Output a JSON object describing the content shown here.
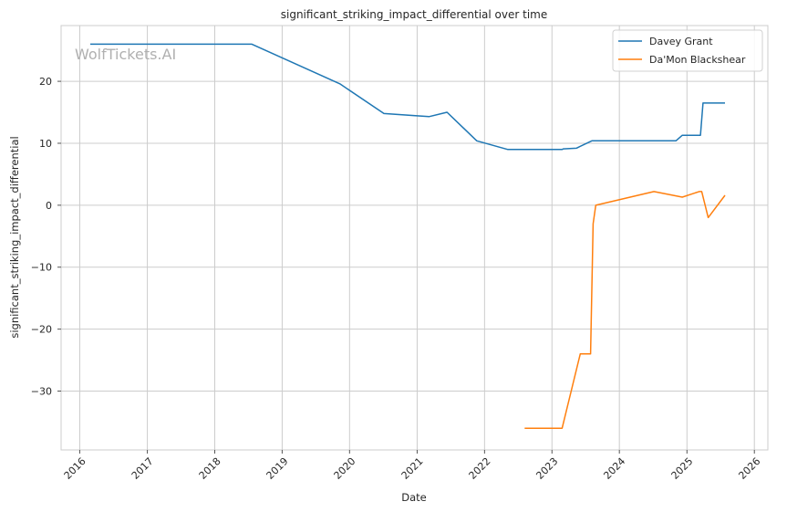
{
  "watermark": "WolfTickets.AI",
  "chart_data": {
    "type": "line",
    "title": "significant_striking_impact_differential over time",
    "xlabel": "Date",
    "ylabel": "significant_striking_impact_differential",
    "xlim": [
      "2015-09-22",
      "2026-03-15"
    ],
    "ylim": [
      -39.5,
      29.0
    ],
    "x_ticks": [
      "2016-01-01",
      "2017-01-01",
      "2018-01-01",
      "2019-01-01",
      "2020-01-01",
      "2021-01-01",
      "2022-01-01",
      "2023-01-01",
      "2024-01-01",
      "2025-01-01",
      "2026-01-01"
    ],
    "x_tick_labels": [
      "2016",
      "2017",
      "2018",
      "2019",
      "2020",
      "2021",
      "2022",
      "2023",
      "2024",
      "2025",
      "2026"
    ],
    "y_ticks": [
      -30,
      -20,
      -10,
      0,
      10,
      20
    ],
    "y_tick_labels": [
      "−30",
      "−20",
      "−10",
      "0",
      "10",
      "20"
    ],
    "grid": true,
    "legend_position": "top-right",
    "series": [
      {
        "name": "Davey Grant",
        "color": "#1f77b4",
        "points": [
          [
            "2016-02-27",
            26.0
          ],
          [
            "2018-07-21",
            26.0
          ],
          [
            "2019-11-09",
            19.6
          ],
          [
            "2020-07-05",
            14.8
          ],
          [
            "2021-03-06",
            14.3
          ],
          [
            "2021-06-12",
            15.0
          ],
          [
            "2021-11-20",
            10.4
          ],
          [
            "2022-05-07",
            9.0
          ],
          [
            "2023-02-25",
            9.0
          ],
          [
            "2023-03-04",
            9.1
          ],
          [
            "2023-05-13",
            9.2
          ],
          [
            "2023-08-05",
            10.4
          ],
          [
            "2024-11-02",
            10.4
          ],
          [
            "2024-12-07",
            11.3
          ],
          [
            "2025-03-15",
            11.3
          ],
          [
            "2025-03-29",
            16.5
          ],
          [
            "2025-07-26",
            16.5
          ]
        ]
      },
      {
        "name": "Da'Mon Blackshear",
        "color": "#ff7f0e",
        "points": [
          [
            "2022-08-06",
            -36.0
          ],
          [
            "2023-02-25",
            -36.0
          ],
          [
            "2023-06-03",
            -24.0
          ],
          [
            "2023-07-29",
            -24.0
          ],
          [
            "2023-08-12",
            -3.0
          ],
          [
            "2023-08-26",
            0.0
          ],
          [
            "2024-07-06",
            2.2
          ],
          [
            "2024-12-07",
            1.3
          ],
          [
            "2025-03-08",
            2.2
          ],
          [
            "2025-03-22",
            2.2
          ],
          [
            "2025-04-26",
            -2.0
          ],
          [
            "2025-07-26",
            1.6
          ]
        ]
      }
    ]
  }
}
